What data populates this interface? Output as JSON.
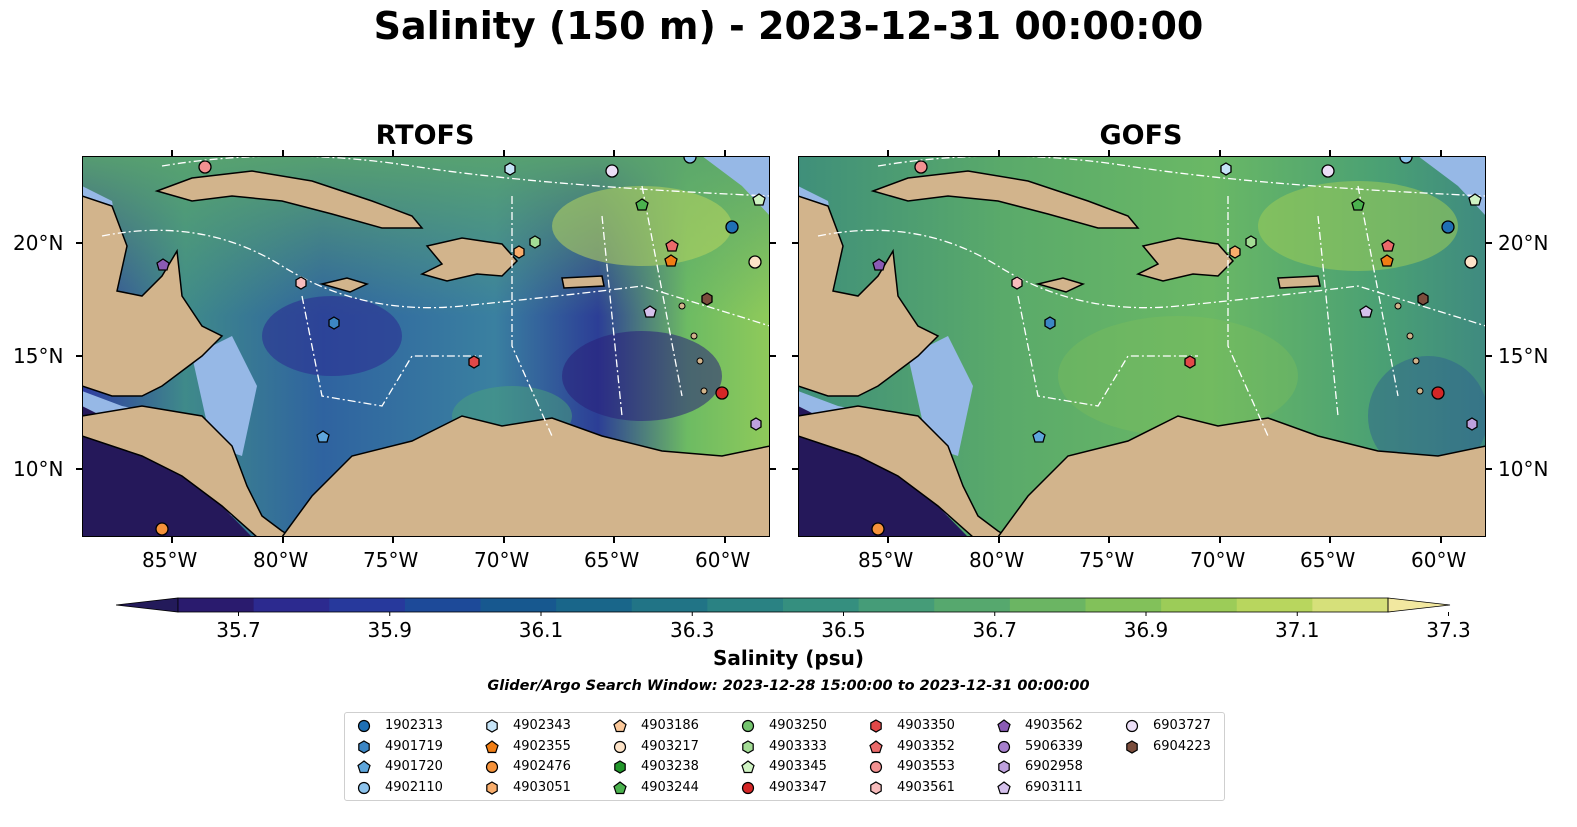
{
  "title": "Salinity (150 m) - 2023-12-31 00:00:00",
  "panels": [
    {
      "title": "RTOFS"
    },
    {
      "title": "GOFS"
    }
  ],
  "lon_ticks": [
    "85°W",
    "80°W",
    "75°W",
    "70°W",
    "65°W",
    "60°W"
  ],
  "lat_ticks": [
    "20°N",
    "15°N",
    "10°N"
  ],
  "colorbar": {
    "label": "Salinity (psu)",
    "ticks": [
      "35.7",
      "35.9",
      "36.1",
      "36.3",
      "36.5",
      "36.7",
      "36.9",
      "37.1",
      "37.3"
    ],
    "colors": [
      "#2a1b6e",
      "#2c2a8f",
      "#27399c",
      "#1d4a99",
      "#17588f",
      "#19668a",
      "#217486",
      "#2a8283",
      "#358f7f",
      "#459c78",
      "#56a86e",
      "#6bb563",
      "#82c15a",
      "#9ccc58",
      "#b8d65e",
      "#d6e07a"
    ],
    "extend_low": "#231a5a",
    "extend_high": "#f2e8a0"
  },
  "search_window": "Glider/Argo Search Window: 2023-12-28 15:00:00 to 2023-12-31 00:00:00",
  "legend": [
    {
      "id": "1902313",
      "marker": "circle",
      "color": "#1f6fb4"
    },
    {
      "id": "4901719",
      "marker": "hexagon",
      "color": "#3c86c4"
    },
    {
      "id": "4901720",
      "marker": "pentagon",
      "color": "#5ea6dc"
    },
    {
      "id": "4902110",
      "marker": "circle",
      "color": "#8dc3ec"
    },
    {
      "id": "4902343",
      "marker": "hexagon",
      "color": "#c6e4f7"
    },
    {
      "id": "4902355",
      "marker": "pentagon",
      "color": "#f07d14"
    },
    {
      "id": "4902476",
      "marker": "circle",
      "color": "#f5923a"
    },
    {
      "id": "4903051",
      "marker": "hexagon",
      "color": "#f8ad6c"
    },
    {
      "id": "4903186",
      "marker": "pentagon",
      "color": "#fbc89a"
    },
    {
      "id": "4903217",
      "marker": "circle",
      "color": "#fde3c8"
    },
    {
      "id": "4903238",
      "marker": "hexagon",
      "color": "#22962a"
    },
    {
      "id": "4903244",
      "marker": "pentagon",
      "color": "#4bb24e"
    },
    {
      "id": "4903250",
      "marker": "circle",
      "color": "#74c46e"
    },
    {
      "id": "4903333",
      "marker": "hexagon",
      "color": "#a3dc95"
    },
    {
      "id": "4903345",
      "marker": "pentagon",
      "color": "#cff3c3"
    },
    {
      "id": "4903347",
      "marker": "circle",
      "color": "#d42626"
    },
    {
      "id": "4903350",
      "marker": "hexagon",
      "color": "#e14848"
    },
    {
      "id": "4903352",
      "marker": "pentagon",
      "color": "#ea6a6a"
    },
    {
      "id": "4903553",
      "marker": "circle",
      "color": "#f29191"
    },
    {
      "id": "4903561",
      "marker": "hexagon",
      "color": "#f8bcbc"
    },
    {
      "id": "4903562",
      "marker": "pentagon",
      "color": "#8a5bb4"
    },
    {
      "id": "5906339",
      "marker": "circle",
      "color": "#a67fcc"
    },
    {
      "id": "6902958",
      "marker": "hexagon",
      "color": "#bea1dd"
    },
    {
      "id": "6903111",
      "marker": "pentagon",
      "color": "#d5c1ec"
    },
    {
      "id": "6903727",
      "marker": "circle",
      "color": "#ecdff7"
    },
    {
      "id": "6904223",
      "marker": "hexagon",
      "color": "#7a4d3c"
    }
  ]
}
